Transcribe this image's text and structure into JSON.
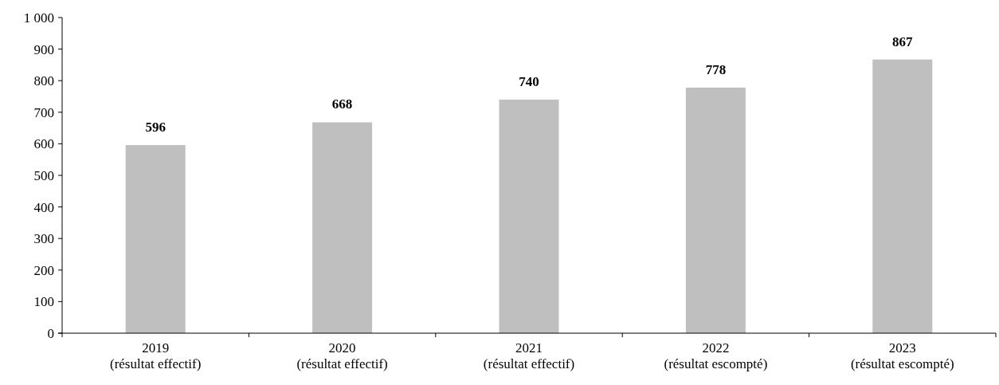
{
  "chart_data": {
    "type": "bar",
    "categories": [
      "2019\n(résultat effectif)",
      "2020\n(résultat effectif)",
      "2021\n(résultat effectif)",
      "2022\n(résultat escompté)",
      "2023\n(résultat escompté)"
    ],
    "values": [
      596,
      668,
      740,
      778,
      867
    ],
    "color": "#bfbfbf",
    "ylim": [
      0,
      1000
    ],
    "yticks": [
      0,
      100,
      200,
      300,
      400,
      500,
      600,
      700,
      800,
      900,
      {
        "value": 1000,
        "label": "1 000"
      }
    ],
    "data_labels": true
  }
}
